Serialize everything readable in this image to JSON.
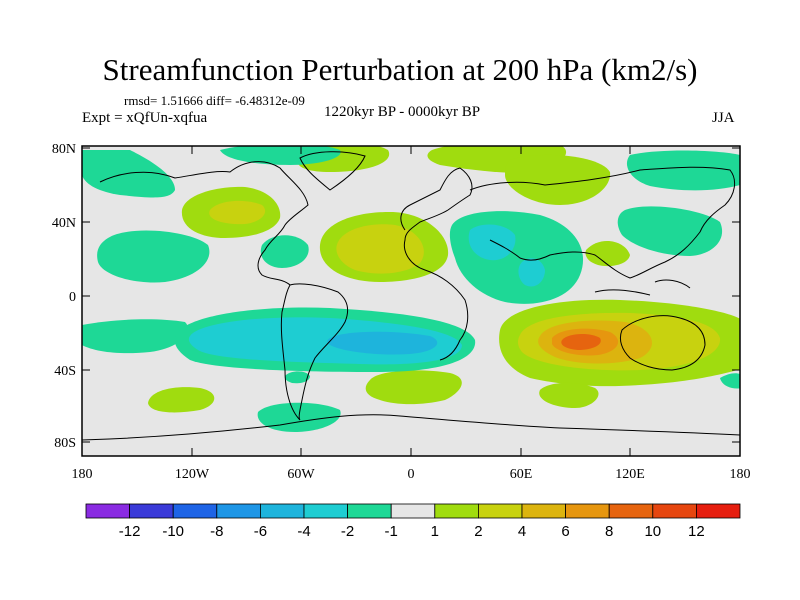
{
  "title": "Streamfunction Perturbation at 200 hPa (km2/s)",
  "stats": "rmsd= 1.51666 diff= -6.48312e-09",
  "experiment": "Expt = xQfUn-xqfua",
  "period": "1220kyr BP - 0000kyr BP",
  "season": "JJA",
  "lat_ticks": [
    "80N",
    "40N",
    "0",
    "40S",
    "80S"
  ],
  "lon_ticks": [
    "180",
    "120W",
    "60W",
    "0",
    "60E",
    "120E",
    "180"
  ],
  "colorbar": {
    "colors": [
      "#8a2be2",
      "#3a3ad8",
      "#1e64e6",
      "#1e96e6",
      "#1eb4dc",
      "#1ecdd2",
      "#1ed896",
      "#e6e6e6",
      "#a0dc0f",
      "#c8d20f",
      "#dcb40f",
      "#e6960f",
      "#e6640f",
      "#e6460f",
      "#e61e0f"
    ],
    "labels": [
      "-12",
      "-10",
      "-8",
      "-6",
      "-4",
      "-2",
      "-1",
      "1",
      "2",
      "4",
      "6",
      "8",
      "10",
      "12"
    ]
  }
}
